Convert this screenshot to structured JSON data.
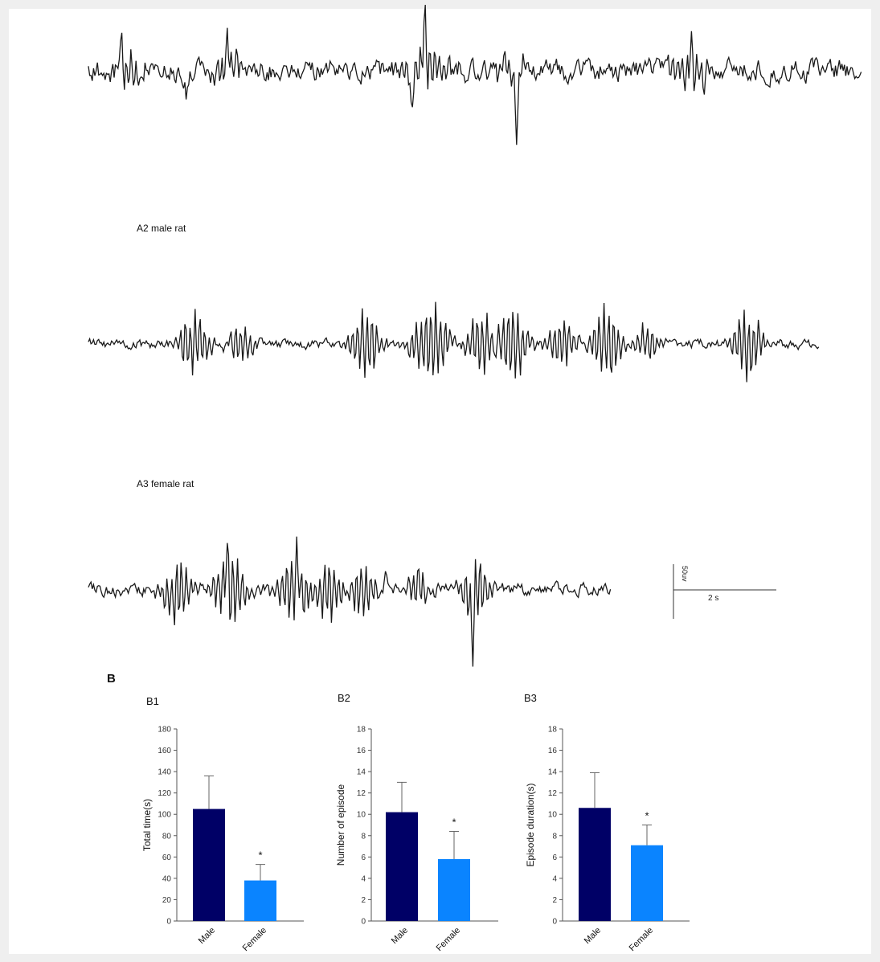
{
  "eeg": {
    "panels": [
      {
        "label": ""
      },
      {
        "label": "A2 male rat"
      },
      {
        "label": "A3 female rat"
      }
    ],
    "scale_bar": {
      "amplitude_label": "50uv",
      "time_label": "2 s"
    }
  },
  "panel_b_label": "B",
  "chart_data": [
    {
      "type": "bar",
      "panel_label": "B1",
      "title": "",
      "xlabel": "",
      "ylabel": "Total time(s)",
      "categories": [
        "Male",
        "Female"
      ],
      "values": [
        105,
        38
      ],
      "errors": [
        31,
        15
      ],
      "significance": [
        "",
        "*"
      ],
      "colors": [
        "#000066",
        "#0a84ff"
      ],
      "ylim": [
        0,
        180
      ],
      "yticks": [
        0,
        20,
        40,
        60,
        80,
        100,
        120,
        140,
        160,
        180
      ]
    },
    {
      "type": "bar",
      "panel_label": "B2",
      "title": "",
      "xlabel": "",
      "ylabel": "Number of episode",
      "categories": [
        "Male",
        "Female"
      ],
      "values": [
        10.2,
        5.8
      ],
      "errors": [
        2.8,
        2.6
      ],
      "significance": [
        "",
        "*"
      ],
      "colors": [
        "#000066",
        "#0a84ff"
      ],
      "ylim": [
        0,
        18
      ],
      "yticks": [
        0,
        2,
        4,
        6,
        8,
        10,
        12,
        14,
        16,
        18
      ]
    },
    {
      "type": "bar",
      "panel_label": "B3",
      "title": "",
      "xlabel": "",
      "ylabel": "Episode duration(s)",
      "categories": [
        "Male",
        "Female"
      ],
      "values": [
        10.6,
        7.1
      ],
      "errors": [
        3.3,
        1.9
      ],
      "significance": [
        "",
        "*"
      ],
      "colors": [
        "#000066",
        "#0a84ff"
      ],
      "ylim": [
        0,
        18
      ],
      "yticks": [
        0,
        2,
        4,
        6,
        8,
        10,
        12,
        14,
        16,
        18
      ]
    }
  ]
}
